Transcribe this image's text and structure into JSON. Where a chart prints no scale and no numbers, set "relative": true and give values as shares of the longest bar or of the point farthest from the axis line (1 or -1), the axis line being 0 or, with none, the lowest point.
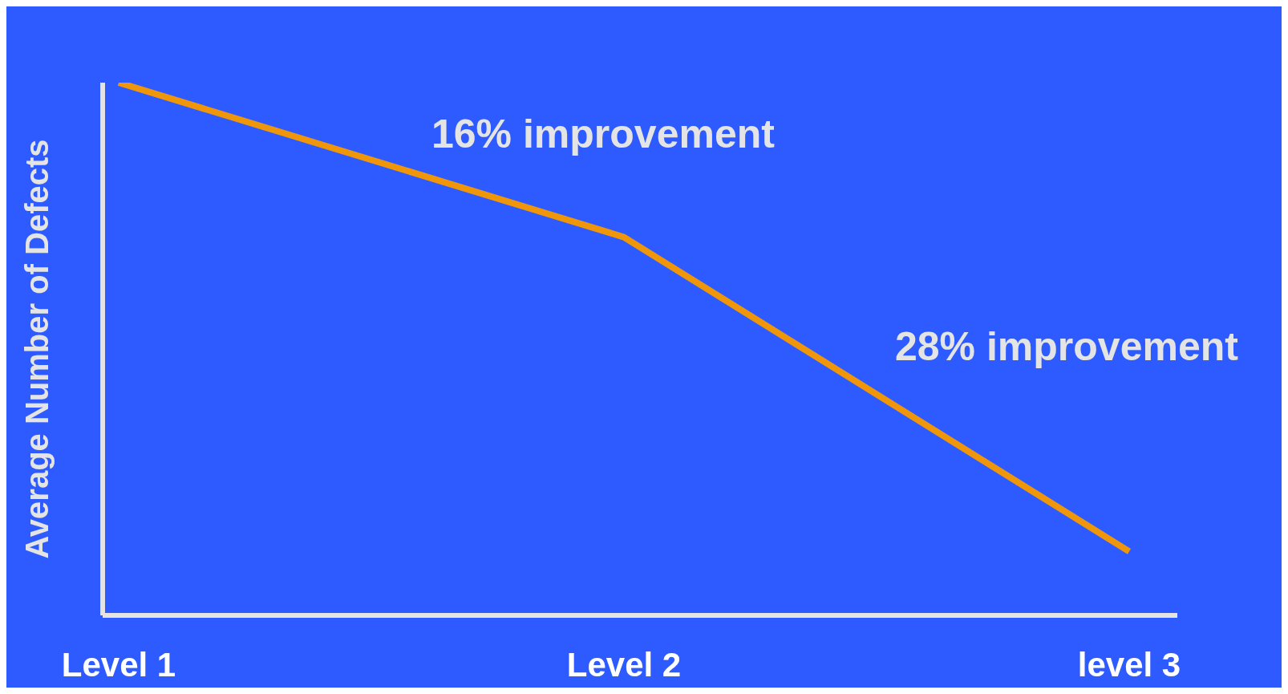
{
  "chart_data": {
    "type": "line",
    "relative": true,
    "categories": [
      "Level 1",
      "Level 2",
      "level 3"
    ],
    "series": [
      {
        "color": "#f0960a",
        "values": [
          1,
          0.71,
          0.12
        ]
      }
    ],
    "ylabel": "Average Number of Defects",
    "annotations": [
      "16% improvement",
      "28% improvement"
    ],
    "marker": "none",
    "line_style": "solid"
  }
}
